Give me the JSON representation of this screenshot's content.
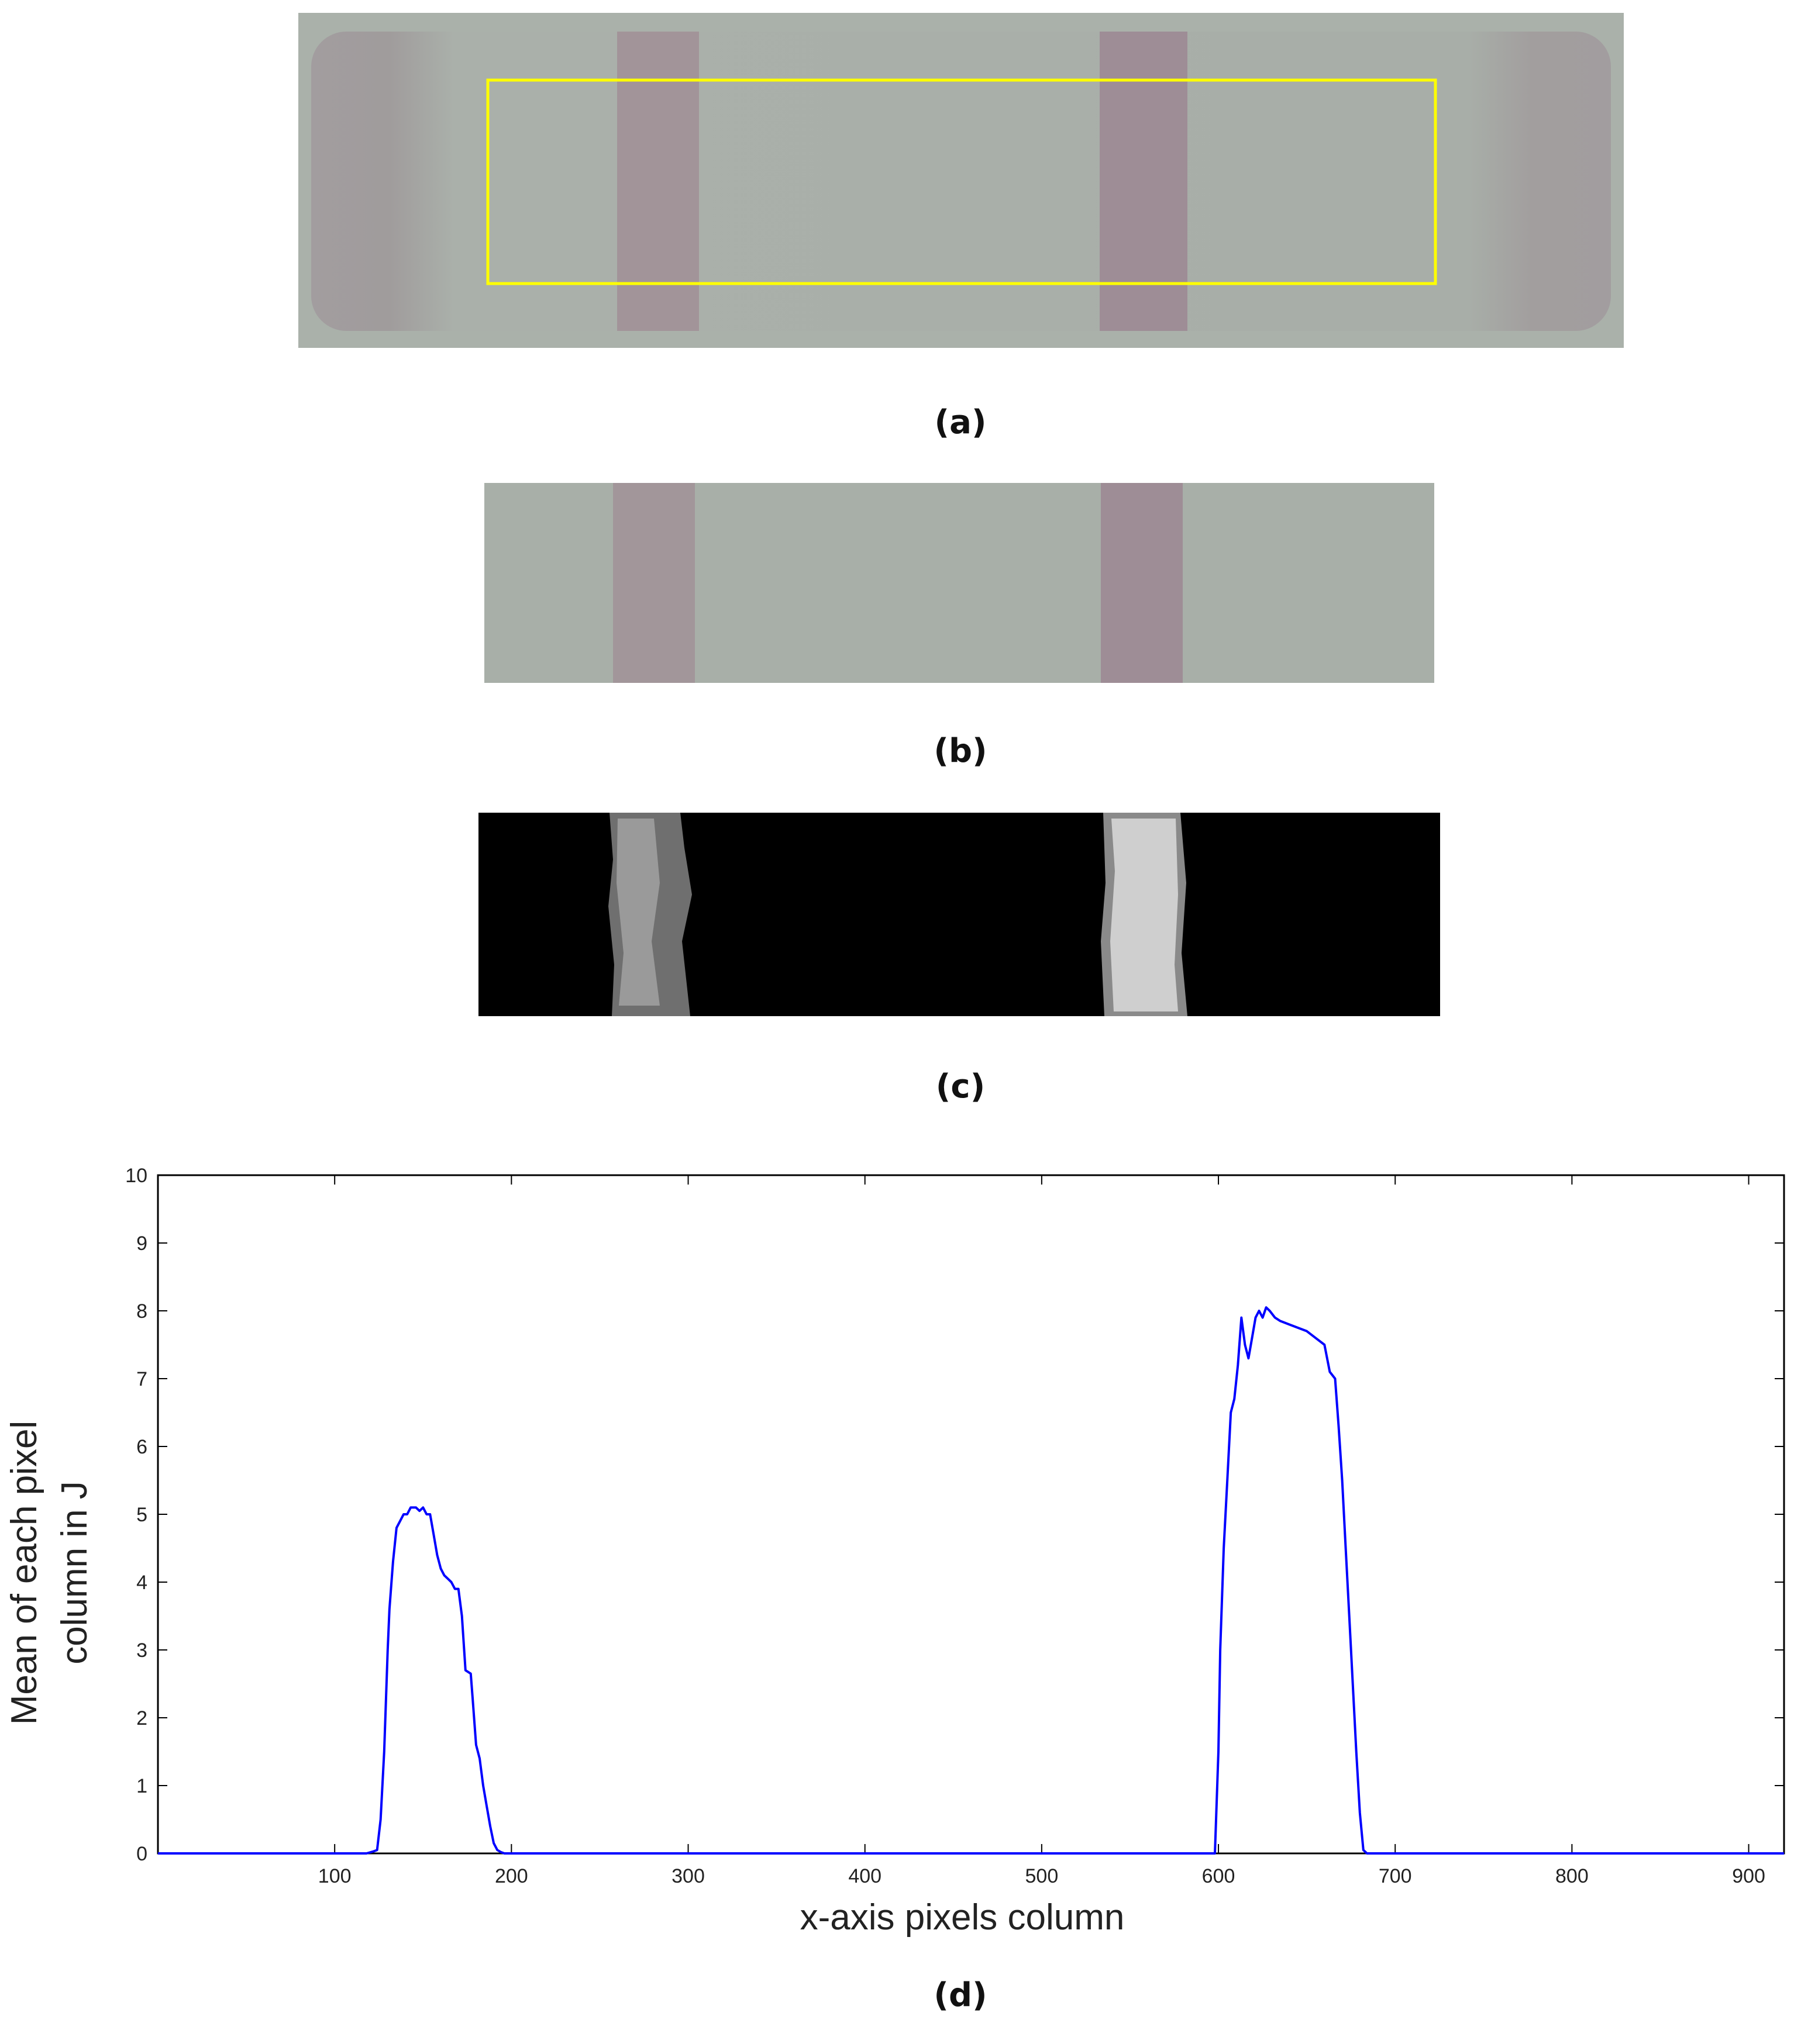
{
  "captions": {
    "a": "(a)",
    "b": "(b)",
    "c": "(c)",
    "d": "(d)"
  },
  "colors": {
    "strip_background": "#a5aca5",
    "strip_edge": "#9e9c9c",
    "test_line": "#9c8c92",
    "roi_box": "#ffff00",
    "binary_background": "#000000",
    "binary_band_low": "#7a7a7a",
    "binary_band_high": "#cccccc",
    "series_line": "#0000ff"
  },
  "chart_data": {
    "type": "line",
    "title": "",
    "xlabel": "x-axis pixels column",
    "ylabel_lines": [
      "Mean of each pixel",
      "column in J"
    ],
    "xlim": [
      0,
      920
    ],
    "ylim": [
      0,
      10
    ],
    "x_ticks": [
      100,
      200,
      300,
      400,
      500,
      600,
      700,
      800,
      900
    ],
    "y_ticks": [
      0,
      1,
      2,
      3,
      4,
      5,
      6,
      7,
      8,
      9,
      10
    ],
    "grid": false,
    "series": [
      {
        "color": "#0000ff",
        "x": [
          0,
          118,
          122,
          124,
          126,
          128,
          130,
          131,
          133,
          135,
          137,
          139,
          141,
          143,
          146,
          148,
          150,
          152,
          154,
          156,
          158,
          160,
          162,
          164,
          166,
          168,
          170,
          172,
          174,
          177,
          178,
          180,
          182,
          184,
          186,
          188,
          190,
          192,
          194,
          196,
          198,
          200,
          202,
          205,
          210,
          300,
          400,
          500,
          598,
          600,
          601,
          603,
          605,
          607,
          609,
          611,
          613,
          615,
          617,
          619,
          621,
          623,
          625,
          627,
          629,
          632,
          635,
          640,
          645,
          650,
          655,
          660,
          663,
          666,
          668,
          670,
          672,
          674,
          676,
          678,
          680,
          682,
          684,
          686,
          690,
          800,
          920
        ],
        "y": [
          0,
          0,
          0.03,
          0.05,
          0.5,
          1.5,
          3.0,
          3.6,
          4.3,
          4.8,
          4.9,
          5.0,
          5.0,
          5.1,
          5.1,
          5.05,
          5.1,
          5.0,
          5.0,
          4.7,
          4.4,
          4.2,
          4.1,
          4.05,
          4.0,
          3.9,
          3.9,
          3.5,
          2.7,
          2.65,
          2.3,
          1.6,
          1.4,
          1.0,
          0.7,
          0.4,
          0.15,
          0.05,
          0.02,
          0,
          0,
          0,
          0,
          0,
          0,
          0,
          0,
          0,
          0,
          1.5,
          3.0,
          4.5,
          5.5,
          6.5,
          6.7,
          7.2,
          7.9,
          7.5,
          7.3,
          7.6,
          7.9,
          8.0,
          7.9,
          8.05,
          8.0,
          7.9,
          7.85,
          7.8,
          7.75,
          7.7,
          7.6,
          7.5,
          7.1,
          7.0,
          6.3,
          5.5,
          4.5,
          3.5,
          2.5,
          1.5,
          0.6,
          0.05,
          0,
          0,
          0,
          0,
          0
        ]
      }
    ]
  }
}
